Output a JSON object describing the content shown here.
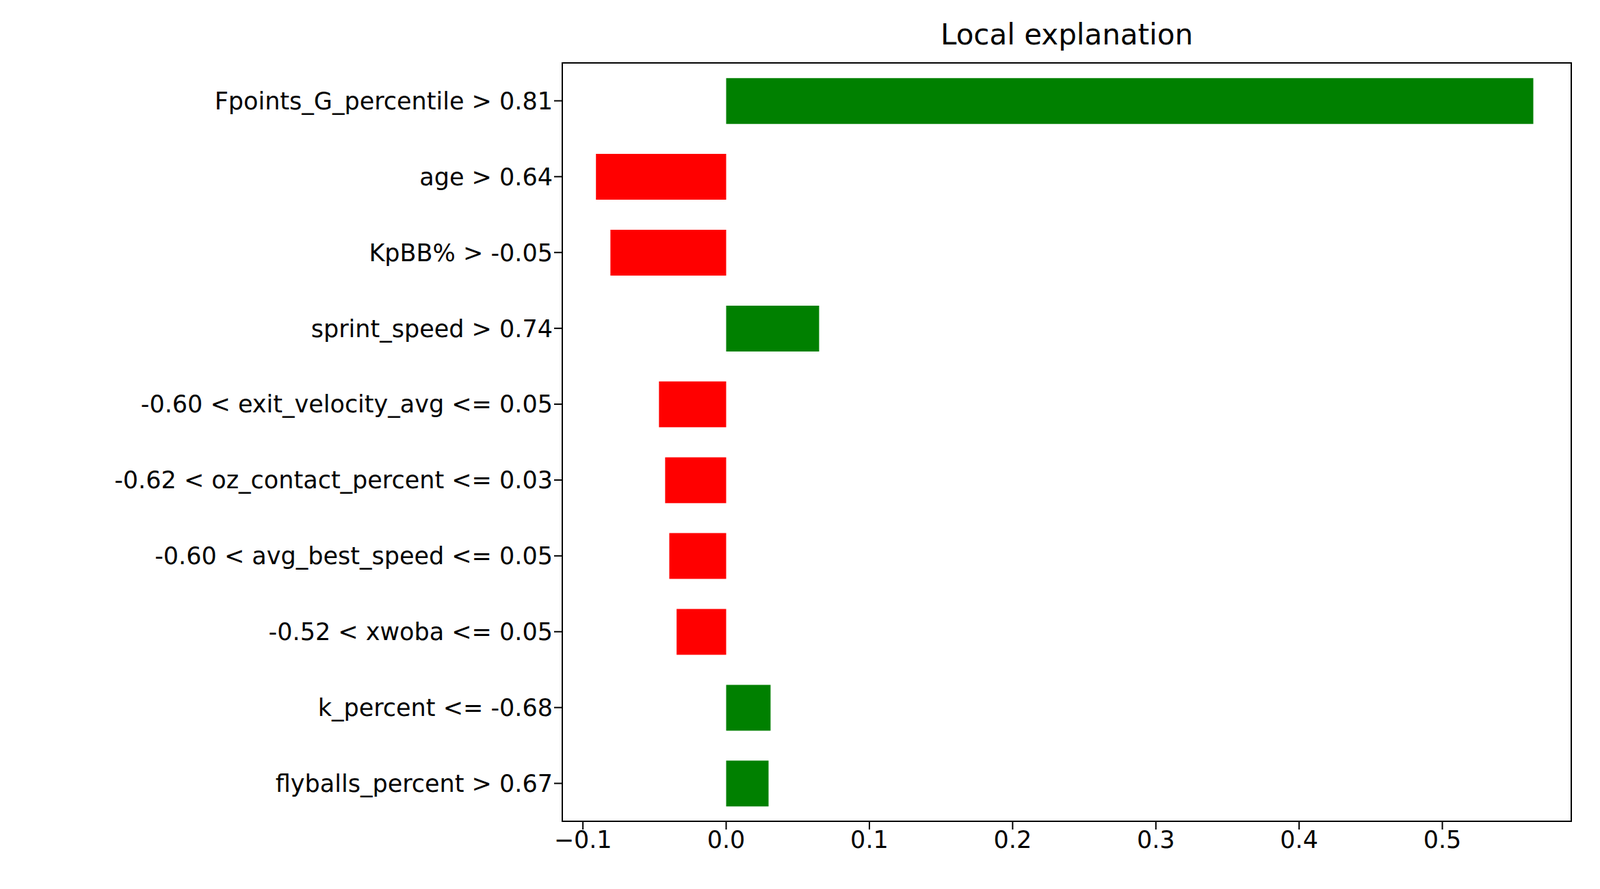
{
  "chart_data": {
    "type": "bar",
    "title": "Local explanation",
    "orientation": "horizontal",
    "categories": [
      "Fpoints_G_percentile > 0.81",
      "age > 0.64",
      "KpBB% > -0.05",
      "sprint_speed > 0.74",
      "-0.60 < exit_velocity_avg <= 0.05",
      "-0.62 < oz_contact_percent <= 0.03",
      "-0.60 < avg_best_speed <= 0.05",
      "-0.52 < xwoba <= 0.05",
      "k_percent <= -0.68",
      "flyballs_percent > 0.67"
    ],
    "values": [
      0.5635,
      -0.0909,
      -0.0808,
      0.0649,
      -0.0469,
      -0.0426,
      -0.0397,
      -0.0346,
      0.031,
      0.0296
    ],
    "colors": [
      "#008000",
      "#ff0000",
      "#ff0000",
      "#008000",
      "#ff0000",
      "#ff0000",
      "#ff0000",
      "#ff0000",
      "#008000",
      "#008000"
    ],
    "xlim": [
      -0.1144,
      0.59
    ],
    "xticks": [
      {
        "value": -0.1,
        "label": "−0.1"
      },
      {
        "value": 0,
        "label": "0.0"
      },
      0.1,
      0.2,
      0.3,
      0.4,
      0.5
    ],
    "grid": false
  }
}
